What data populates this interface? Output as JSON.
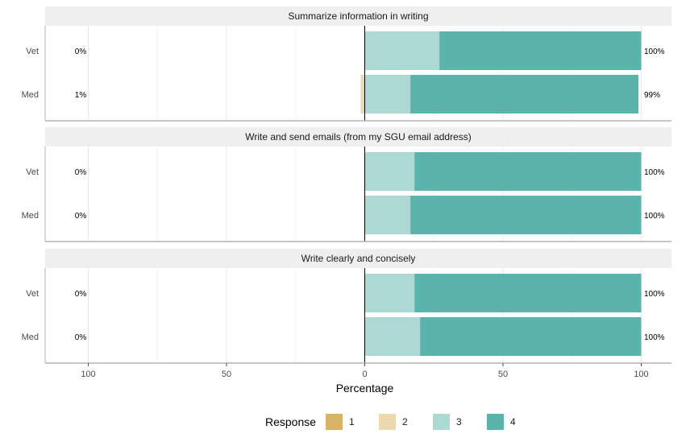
{
  "chart_data": {
    "type": "bar",
    "orientation": "horizontal",
    "stacked": true,
    "diverging": true,
    "xlabel": "Percentage",
    "xlim": [
      -115,
      110
    ],
    "x_ticks": [
      -100,
      -50,
      0,
      50,
      100
    ],
    "x_tick_labels": [
      "100",
      "50",
      "0",
      "50",
      "100"
    ],
    "grid": true,
    "legend": {
      "title": "Response",
      "position": "bottom",
      "items": [
        {
          "label": "1",
          "color": "#D8B365"
        },
        {
          "label": "2",
          "color": "#ECD9B0"
        },
        {
          "label": "3",
          "color": "#ACD9D3"
        },
        {
          "label": "4",
          "color": "#5AB4AC"
        }
      ]
    },
    "panels": [
      {
        "title": "Summarize information in writing",
        "rows": [
          {
            "category": "Vet",
            "left_label": "0%",
            "right_label": "100%",
            "values": {
              "1": 0,
              "2": 0,
              "3": 27,
              "4": 73
            }
          },
          {
            "category": "Med",
            "left_label": "1%",
            "right_label": "99%",
            "values": {
              "1": 0,
              "2": 1.5,
              "3": 16.5,
              "4": 82.5
            }
          }
        ]
      },
      {
        "title": "Write and send emails (from my SGU email address)",
        "rows": [
          {
            "category": "Vet",
            "left_label": "0%",
            "right_label": "100%",
            "values": {
              "1": 0,
              "2": 0,
              "3": 18,
              "4": 82
            }
          },
          {
            "category": "Med",
            "left_label": "0%",
            "right_label": "100%",
            "values": {
              "1": 0,
              "2": 0,
              "3": 16.5,
              "4": 83.5
            }
          }
        ]
      },
      {
        "title": "Write clearly and concisely",
        "rows": [
          {
            "category": "Vet",
            "left_label": "0%",
            "right_label": "100%",
            "values": {
              "1": 0,
              "2": 0,
              "3": 18,
              "4": 82
            }
          },
          {
            "category": "Med",
            "left_label": "0%",
            "right_label": "100%",
            "values": {
              "1": 0,
              "2": 0,
              "3": 20,
              "4": 80
            }
          }
        ]
      }
    ]
  }
}
